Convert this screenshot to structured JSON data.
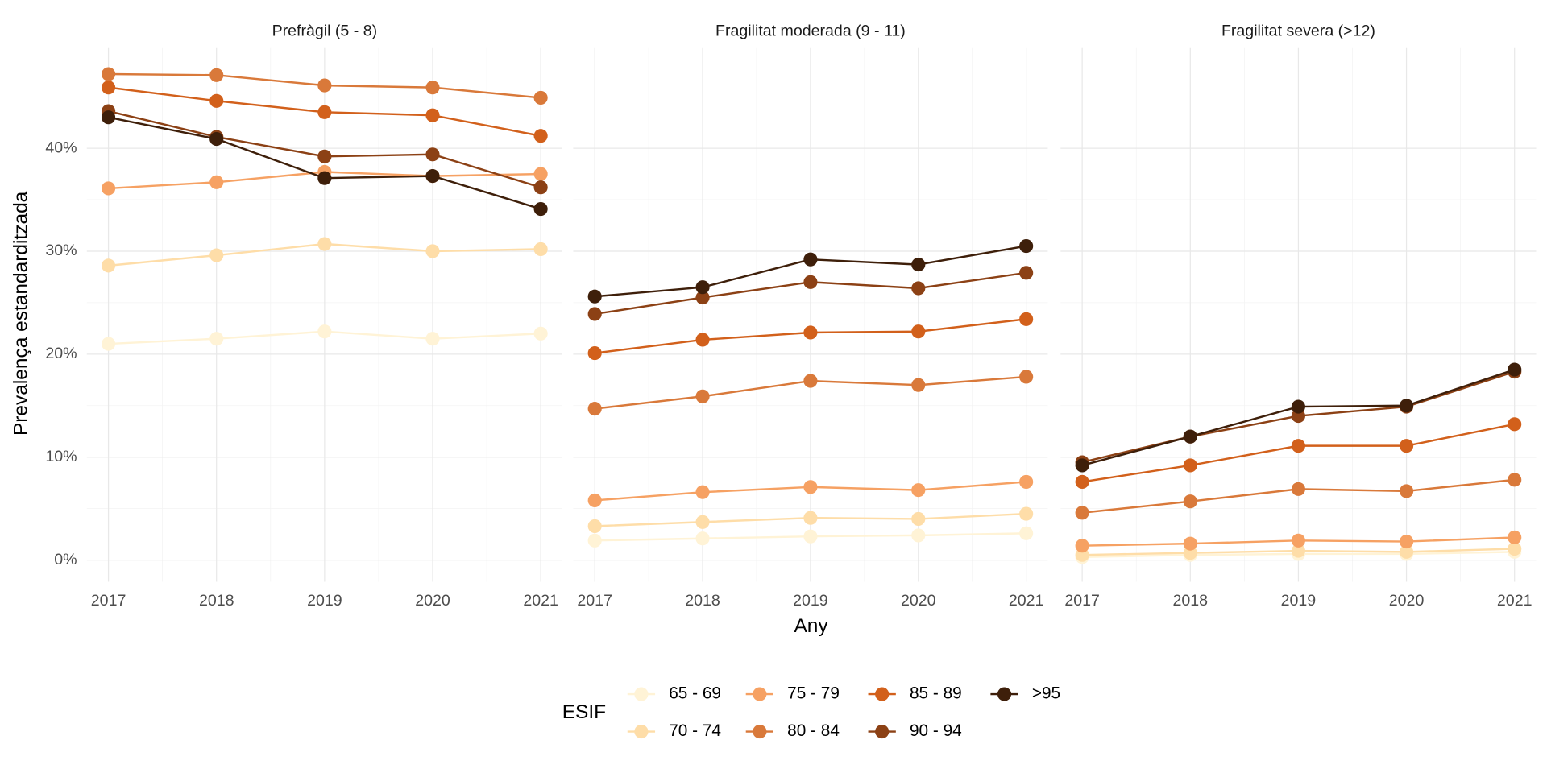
{
  "chart_data": [
    {
      "type": "line",
      "title": "Prefràgil (5 - 8)",
      "ylabel": "Prevalença estandarditzada",
      "x": [
        2017,
        2018,
        2019,
        2020,
        2021
      ],
      "xlim": [
        2016.8,
        2021.2
      ],
      "xticks": [
        2017,
        2018,
        2019,
        2020,
        2021
      ],
      "ylim": [
        -2.1,
        49.8
      ],
      "yticks": [
        {
          "value": 0,
          "label": "0%"
        },
        {
          "value": 10,
          "label": "10%"
        },
        {
          "value": 20,
          "label": "20%"
        },
        {
          "value": 30,
          "label": "30%"
        },
        {
          "value": 40,
          "label": "40%"
        }
      ],
      "grid": true,
      "series": [
        {
          "name": "65 - 69",
          "color": "#fff3d6",
          "values": [
            21.0,
            21.5,
            22.2,
            21.5,
            22.0
          ]
        },
        {
          "name": "70 - 74",
          "color": "#fedda8",
          "values": [
            28.6,
            29.6,
            30.7,
            30.0,
            30.2
          ]
        },
        {
          "name": "75 - 79",
          "color": "#f6a163",
          "values": [
            36.1,
            36.7,
            37.7,
            37.3,
            37.5
          ]
        },
        {
          "name": "80 - 84",
          "color": "#d9793a",
          "values": [
            47.2,
            47.1,
            46.1,
            45.9,
            44.9
          ]
        },
        {
          "name": "85 - 89",
          "color": "#d2601b",
          "values": [
            45.9,
            44.6,
            43.5,
            43.2,
            41.2
          ]
        },
        {
          "name": "90 - 94",
          "color": "#8c4115",
          "values": [
            43.6,
            41.1,
            39.2,
            39.4,
            36.2
          ]
        },
        {
          "name": ">95",
          "color": "#3e1f0a",
          "values": [
            43.0,
            40.9,
            37.1,
            37.3,
            34.1
          ]
        }
      ]
    },
    {
      "type": "line",
      "title": "Fragilitat moderada (9 - 11)",
      "xlabel": "Any",
      "legend_title": "ESIF",
      "x": [
        2017,
        2018,
        2019,
        2020,
        2021
      ],
      "xlim": [
        2016.8,
        2021.2
      ],
      "xticks": [
        2017,
        2018,
        2019,
        2020,
        2021
      ],
      "ylim": [
        -2.1,
        49.8
      ],
      "yticks": [
        0,
        10,
        20,
        30,
        40
      ],
      "grid": true,
      "series": [
        {
          "name": "65 - 69",
          "color": "#fff3d6",
          "values": [
            1.9,
            2.1,
            2.3,
            2.4,
            2.6
          ]
        },
        {
          "name": "70 - 74",
          "color": "#fedda8",
          "values": [
            3.3,
            3.7,
            4.1,
            4.0,
            4.5
          ]
        },
        {
          "name": "75 - 79",
          "color": "#f6a163",
          "values": [
            5.8,
            6.6,
            7.1,
            6.8,
            7.6
          ]
        },
        {
          "name": "80 - 84",
          "color": "#d9793a",
          "values": [
            14.7,
            15.9,
            17.4,
            17.0,
            17.8
          ]
        },
        {
          "name": "85 - 89",
          "color": "#d2601b",
          "values": [
            20.1,
            21.4,
            22.1,
            22.2,
            23.4
          ]
        },
        {
          "name": "90 - 94",
          "color": "#8c4115",
          "values": [
            23.9,
            25.5,
            27.0,
            26.4,
            27.9
          ]
        },
        {
          "name": ">95",
          "color": "#3e1f0a",
          "values": [
            25.6,
            26.5,
            29.2,
            28.7,
            30.5
          ]
        }
      ]
    },
    {
      "type": "line",
      "title": "Fragilitat severa (>12)",
      "x": [
        2017,
        2018,
        2019,
        2020,
        2021
      ],
      "xlim": [
        2016.8,
        2021.2
      ],
      "xticks": [
        2017,
        2018,
        2019,
        2020,
        2021
      ],
      "ylim": [
        -2.1,
        49.8
      ],
      "yticks": [
        0,
        10,
        20,
        30,
        40
      ],
      "grid": true,
      "series": [
        {
          "name": "65 - 69",
          "color": "#fff3d6",
          "values": [
            0.3,
            0.5,
            0.6,
            0.6,
            0.8
          ]
        },
        {
          "name": "70 - 74",
          "color": "#fedda8",
          "values": [
            0.5,
            0.7,
            0.9,
            0.8,
            1.1
          ]
        },
        {
          "name": "75 - 79",
          "color": "#f6a163",
          "values": [
            1.4,
            1.6,
            1.9,
            1.8,
            2.2
          ]
        },
        {
          "name": "80 - 84",
          "color": "#d9793a",
          "values": [
            4.6,
            5.7,
            6.9,
            6.7,
            7.8
          ]
        },
        {
          "name": "85 - 89",
          "color": "#d2601b",
          "values": [
            7.6,
            9.2,
            11.1,
            11.1,
            13.2
          ]
        },
        {
          "name": "90 - 94",
          "color": "#8c4115",
          "values": [
            9.5,
            12.0,
            14.0,
            14.9,
            18.3
          ]
        },
        {
          "name": ">95",
          "color": "#3e1f0a",
          "values": [
            9.2,
            12.0,
            14.9,
            15.0,
            18.5
          ]
        }
      ]
    }
  ]
}
